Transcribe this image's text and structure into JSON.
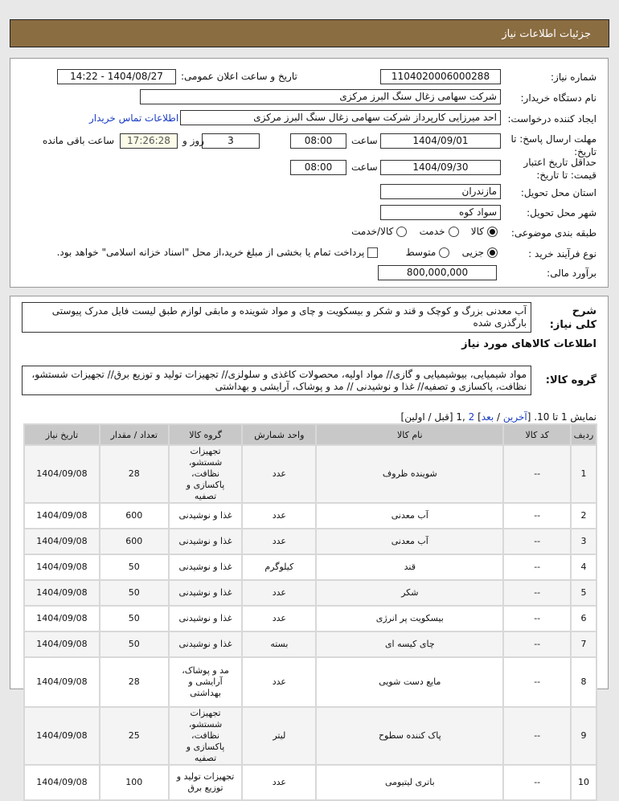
{
  "header": {
    "title": "جزئیات اطلاعات نیاز"
  },
  "form": {
    "need_number_label": "شماره نیاز:",
    "need_number": "1104020006000288",
    "announce_label": "تاریخ و ساعت اعلان عمومی:",
    "announce_value": "1404/08/27 - 14:22",
    "buyer_label": "نام دستگاه خریدار:",
    "buyer": "شرکت سهامی زغال سنگ البرز مرکزی",
    "creator_label": "ایجاد کننده درخواست:",
    "creator": "احد میرزایی کارپرداز شرکت سهامی زغال سنگ البرز مرکزی",
    "contact_link": "اطلاعات تماس خریدار",
    "deadline_label": "مهلت ارسال پاسخ: تا تاریخ:",
    "deadline_date": "1404/09/01",
    "time_label": "ساعت",
    "deadline_time": "08:00",
    "days": "3",
    "days_label": "روز و",
    "remaining": "17:26:28",
    "remaining_label": "ساعت باقی مانده",
    "validity_label": "حداقل تاریخ اعتبار قیمت: تا تاریخ:",
    "validity_date": "1404/09/30",
    "validity_time": "08:00",
    "province_label": "استان محل تحویل:",
    "province": "مازندران",
    "city_label": "شهر محل تحویل:",
    "city": "سواد کوه",
    "category_label": "طبقه بندی موضوعی:",
    "category_options": [
      "کالا",
      "خدمت",
      "کالا/خدمت"
    ],
    "process_label": "نوع فرآیند خرید :",
    "process_options": [
      "جزیی",
      "متوسط"
    ],
    "payment_note": "پرداخت تمام یا بخشی از مبلغ خرید،از محل \"اسناد خزانه اسلامی\" خواهد بود.",
    "budget_label": "برآورد مالی:",
    "budget": "800,000,000"
  },
  "details": {
    "desc_label": "شرح کلی نیاز:",
    "desc": "آب معدنی بزرگ و کوچک و قند و شکر و بیسکویت و چای و مواد شوینده و مابقی لوازم طبق لیست فایل مدرک پیوستی بارگذری شده",
    "goods_title": "اطلاعات کالاهای مورد نیاز",
    "group_label": "گروه کالا:",
    "group": "مواد شیمیایی، بیوشیمیایی و گازی// مواد اولیه، محصولات کاغذی و سلولزی// تجهیزات تولید و توزیع برق// تجهیزات شستشو، نظافت، پاکسازی و تصفیه// غذا و نوشیدنی // مد و پوشاک، آرایشی و بهداشتی"
  },
  "pagination": {
    "prefix": "نمایش 1 تا 10. [",
    "last": "آخرین",
    "sep": " / ",
    "next": "بعد",
    "mid": "] ",
    "page2": "2",
    "pages": " ,1 [قبل / اولین]"
  },
  "table": {
    "headers": [
      "ردیف",
      "کد کالا",
      "نام کالا",
      "واحد شمارش",
      "گروه کالا",
      "تعداد / مقدار",
      "تاریخ نیاز"
    ],
    "rows": [
      [
        "1",
        "--",
        "شوینده ظروف",
        "عدد",
        "تجهیزات شستشو، نظافت، پاکسازی و تصفیه",
        "28",
        "1404/09/08"
      ],
      [
        "2",
        "--",
        "آب معدنی",
        "عدد",
        "غذا و نوشیدنی",
        "600",
        "1404/09/08"
      ],
      [
        "3",
        "--",
        "آب معدنی",
        "عدد",
        "غذا و نوشیدنی",
        "600",
        "1404/09/08"
      ],
      [
        "4",
        "--",
        "قند",
        "کیلوگرم",
        "غذا و نوشیدنی",
        "50",
        "1404/09/08"
      ],
      [
        "5",
        "--",
        "شکر",
        "عدد",
        "غذا و نوشیدنی",
        "50",
        "1404/09/08"
      ],
      [
        "6",
        "--",
        "بیسکویت پر انرژی",
        "عدد",
        "غذا و نوشیدنی",
        "50",
        "1404/09/08"
      ],
      [
        "7",
        "--",
        "چای کیسه ای",
        "بسته",
        "غذا و نوشیدنی",
        "50",
        "1404/09/08"
      ],
      [
        "8",
        "--",
        "مایع دست شویی",
        "عدد",
        "مد و پوشاک، آرایشی و بهداشتی",
        "28",
        "1404/09/08"
      ],
      [
        "9",
        "--",
        "پاک کننده سطوح",
        "لیتر",
        "تجهیزات شستشو، نظافت، پاکسازی و تصفیه",
        "25",
        "1404/09/08"
      ],
      [
        "10",
        "--",
        "باتری لیتیومی",
        "عدد",
        "تجهیزات تولید و توزیع برق",
        "100",
        "1404/09/08"
      ]
    ]
  }
}
